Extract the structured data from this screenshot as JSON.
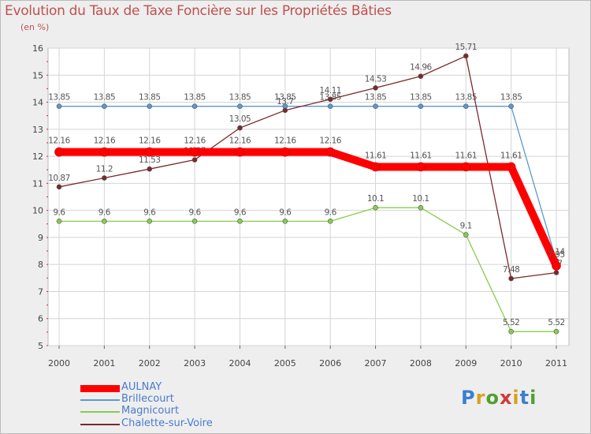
{
  "chart_data": {
    "type": "line",
    "title": "Evolution du Taux de Taxe Foncière sur les Propriétés Bâties",
    "subtitle": "(en %)",
    "x": [
      "2000",
      "2001",
      "2002",
      "2003",
      "2004",
      "2005",
      "2006",
      "2007",
      "2008",
      "2009",
      "2010",
      "2011"
    ],
    "ylim": [
      5,
      16
    ],
    "yticks": [
      "5",
      "6",
      "7",
      "8",
      "9",
      "10",
      "11",
      "12",
      "13",
      "14",
      "15",
      "16"
    ],
    "series": [
      {
        "name": "Brillecourt",
        "color": "#5a9ad0",
        "width": 1.3,
        "values": [
          13.85,
          13.85,
          13.85,
          13.85,
          13.85,
          13.85,
          13.85,
          13.85,
          13.85,
          13.85,
          13.85,
          8.14
        ],
        "labels": [
          "13.85",
          "13.85",
          "13.85",
          "13.85",
          "13.85",
          "13.85",
          "13.85",
          "13.85",
          "13.85",
          "13.85",
          "13.85",
          "8.14"
        ]
      },
      {
        "name": "Magnicourt",
        "color": "#88cc50",
        "width": 1.3,
        "values": [
          9.6,
          9.6,
          9.6,
          9.6,
          9.6,
          9.6,
          9.6,
          10.1,
          10.1,
          9.1,
          5.52,
          5.52
        ],
        "labels": [
          "9.6",
          "9.6",
          "9.6",
          "9.6",
          "9.6",
          "9.6",
          "9.6",
          "10.1",
          "10.1",
          "9.1",
          "5.52",
          "5.52"
        ]
      },
      {
        "name": "Chalette-sur-Voire",
        "color": "#7a2a2a",
        "width": 1.3,
        "values": [
          10.87,
          11.2,
          11.53,
          11.87,
          13.05,
          13.7,
          14.11,
          14.53,
          14.96,
          15.71,
          7.48,
          7.7
        ],
        "labels": [
          "10.87",
          "11.2",
          "11.53",
          "11.87",
          "13.05",
          "13.7",
          "14.11",
          "14.53",
          "14.96",
          "15.71",
          "7.48",
          "7.7"
        ]
      },
      {
        "name": "AULNAY",
        "color": "#ff0000",
        "width": 10,
        "values": [
          12.16,
          12.16,
          12.16,
          12.16,
          12.16,
          12.16,
          12.16,
          11.61,
          11.61,
          11.61,
          11.61,
          7.95
        ],
        "labels": [
          "12.16",
          "12.16",
          "12.16",
          "12.16",
          "12.16",
          "12.16",
          "12.16",
          "11.61",
          "11.61",
          "11.61",
          "11.61",
          "7.95"
        ]
      }
    ],
    "legend": [
      "AULNAY",
      "Brillecourt",
      "Magnicourt",
      "Chalette-sur-Voire"
    ]
  },
  "logo": {
    "letters": [
      "P",
      "r",
      "o",
      "x",
      "i",
      "t",
      "i"
    ]
  }
}
